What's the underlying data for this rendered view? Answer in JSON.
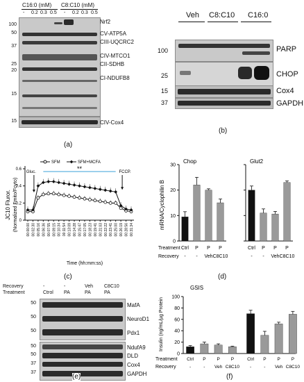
{
  "panels": {
    "a": {
      "letter": "(a)",
      "group_c16": "C16:0 (mM)",
      "group_c8": "C8:C10 (mM)",
      "lane_labels": [
        "-",
        "0.2",
        "0.3",
        "0.5",
        "-",
        "0.2",
        "0.3",
        "0.5"
      ],
      "mw_markers": [
        "100",
        "50",
        "37",
        "25",
        "20",
        "15",
        "15"
      ],
      "bands": [
        "Nrf2",
        "CV-ATP5A",
        "CIII-UQCRC2",
        "CIV-MTCO1",
        "CII-SDHB",
        "CI-NDUFB8",
        "CIV-Cox4"
      ]
    },
    "b": {
      "letter": "(b)",
      "groups": [
        "Veh",
        "C8:C10",
        "C16:0"
      ],
      "mw_markers": [
        "100",
        "25",
        "15",
        "37"
      ],
      "bands": [
        "PARP",
        "CHOP",
        "Cox4",
        "GAPDH"
      ]
    },
    "c": {
      "letter": "(c)",
      "legend_sfm": "SFM",
      "legend_sfm_mcfa": "SFM+MCFA",
      "ylabel_1": "JC10 Fluror.",
      "ylabel_2": "(Normalized Fmito/Fcyto)",
      "xlabel": "Time (hh:mm:ss)",
      "annot_gluc": "Gluc.",
      "annot_fccp": "FCCP.",
      "annot_sig": "**",
      "yticks": [
        "0.6",
        "0.4",
        "0.2",
        "0"
      ],
      "xticks": [
        "00:00:00",
        "00:02:30",
        "00:05:16",
        "00:06:36",
        "00:07:55",
        "00:09:15",
        "00:10:34",
        "00:11:54",
        "00:13:09",
        "00:14:28",
        "00:15:47",
        "00:17:05",
        "00:18:23",
        "00:19:41",
        "00:21:03",
        "00:22:22",
        "00:23:41",
        "00:25:00",
        "00:26:19",
        "00:28:56",
        "00:31:34"
      ]
    },
    "d": {
      "letter": "(d)",
      "ylabel": "mRNA/Cyclophilin B",
      "chart1_title": "Chop",
      "chart2_title": "Glut2",
      "row_treatment": "Treatment",
      "row_recovery": "Recovery",
      "treat_labels": [
        "Ctrl",
        "P",
        "P",
        "P"
      ],
      "recov_labels": [
        "-",
        "-",
        "Veh",
        "C8C10"
      ],
      "yticks": [
        "30",
        "20",
        "10",
        "0"
      ]
    },
    "e": {
      "letter": "(e)",
      "row_recovery": "Recovery",
      "row_treatment": "Treatment",
      "recov_labels": [
        "-",
        "-",
        "Veh",
        "C8C10"
      ],
      "treat_labels": [
        "Ctrol",
        "PA",
        "PA",
        "PA"
      ],
      "mw_markers": [
        "50",
        "50",
        "50",
        "50",
        "50",
        "37",
        "37"
      ],
      "bands": [
        "MafA",
        "NeuroD1",
        "Pdx1",
        "NdufA9",
        "DLD",
        "Cox4",
        "GAPDH"
      ]
    },
    "f": {
      "letter": "(f)",
      "title": "GSIS",
      "ylabel": "Insulin (ng/mL/µg Protein",
      "row_treatment": "Treatment",
      "row_recovery": "Recovery",
      "treat_labels": [
        "Ctrl",
        "P",
        "P",
        "P",
        "Ctrl",
        "P",
        "P",
        "P"
      ],
      "recov_labels": [
        "-",
        "-",
        "Veh",
        "C8C10",
        "-",
        "-",
        "Veh",
        "C8C10"
      ],
      "yticks": [
        "100",
        "80",
        "60",
        "40",
        "20",
        "0"
      ]
    }
  },
  "chart_data": [
    {
      "type": "line",
      "panel": "c",
      "ylabel": "JC10 Fluror. (Normalized Fmito/Fcyto)",
      "xlabel": "Time (hh:mm:ss)",
      "ylim": [
        0,
        0.6
      ],
      "x": [
        "00:00:00",
        "00:02:30",
        "00:05:16",
        "00:06:36",
        "00:07:55",
        "00:09:15",
        "00:10:34",
        "00:11:54",
        "00:13:09",
        "00:14:28",
        "00:15:47",
        "00:17:05",
        "00:18:23",
        "00:19:41",
        "00:21:03",
        "00:22:22",
        "00:23:41",
        "00:25:00",
        "00:26:19",
        "00:28:56",
        "00:31:34"
      ],
      "series": [
        {
          "name": "SFM",
          "values": [
            0.1,
            0.1,
            0.26,
            0.3,
            0.31,
            0.31,
            0.3,
            0.29,
            0.28,
            0.27,
            0.26,
            0.25,
            0.24,
            0.23,
            0.22,
            0.21,
            0.2,
            0.2,
            0.14,
            0.11,
            0.1
          ],
          "color": "#ffffff"
        },
        {
          "name": "SFM+MCFA",
          "values": [
            0.12,
            0.12,
            0.4,
            0.44,
            0.45,
            0.45,
            0.44,
            0.43,
            0.42,
            0.41,
            0.4,
            0.39,
            0.38,
            0.37,
            0.36,
            0.35,
            0.34,
            0.33,
            0.17,
            0.13,
            0.12
          ],
          "color": "#000000"
        }
      ],
      "annotations": [
        "Gluc.",
        "FCCP.",
        "**"
      ]
    },
    {
      "type": "bar",
      "panel": "d",
      "title": "Chop",
      "ylabel": "mRNA/Cyclophilin B",
      "ylim": [
        0,
        30
      ],
      "categories": [
        "Ctrl",
        "P",
        "P/Veh",
        "P/C8C10"
      ],
      "values": [
        9.5,
        22,
        20,
        15
      ],
      "errors": [
        2,
        3,
        0.5,
        1.5
      ],
      "colors": [
        "#111111",
        "#9a9a9a",
        "#9a9a9a",
        "#9a9a9a"
      ]
    },
    {
      "type": "bar",
      "panel": "d",
      "title": "Glut2",
      "ylim": [
        0,
        15
      ],
      "categories": [
        "Ctrl",
        "P",
        "P/Veh",
        "P/C8C10"
      ],
      "values": [
        10,
        5.5,
        5.3,
        11.5
      ],
      "errors": [
        0.8,
        0.8,
        0.5,
        0.3
      ],
      "colors": [
        "#111111",
        "#9a9a9a",
        "#9a9a9a",
        "#9a9a9a"
      ]
    },
    {
      "type": "bar",
      "panel": "f",
      "title": "GSIS",
      "ylabel": "Insulin (ng/mL/µg Protein",
      "ylim": [
        0,
        100
      ],
      "categories": [
        "Ctrl",
        "P",
        "P/Veh",
        "P/C8C10",
        "Ctrl",
        "P",
        "P/Veh",
        "P/C8C10"
      ],
      "values": [
        12,
        17,
        15,
        12,
        70,
        32,
        52,
        69
      ],
      "errors": [
        2,
        3,
        2,
        1,
        6,
        7,
        3,
        5
      ],
      "colors": [
        "#111111",
        "#9a9a9a",
        "#9a9a9a",
        "#9a9a9a",
        "#111111",
        "#9a9a9a",
        "#9a9a9a",
        "#9a9a9a"
      ]
    }
  ]
}
